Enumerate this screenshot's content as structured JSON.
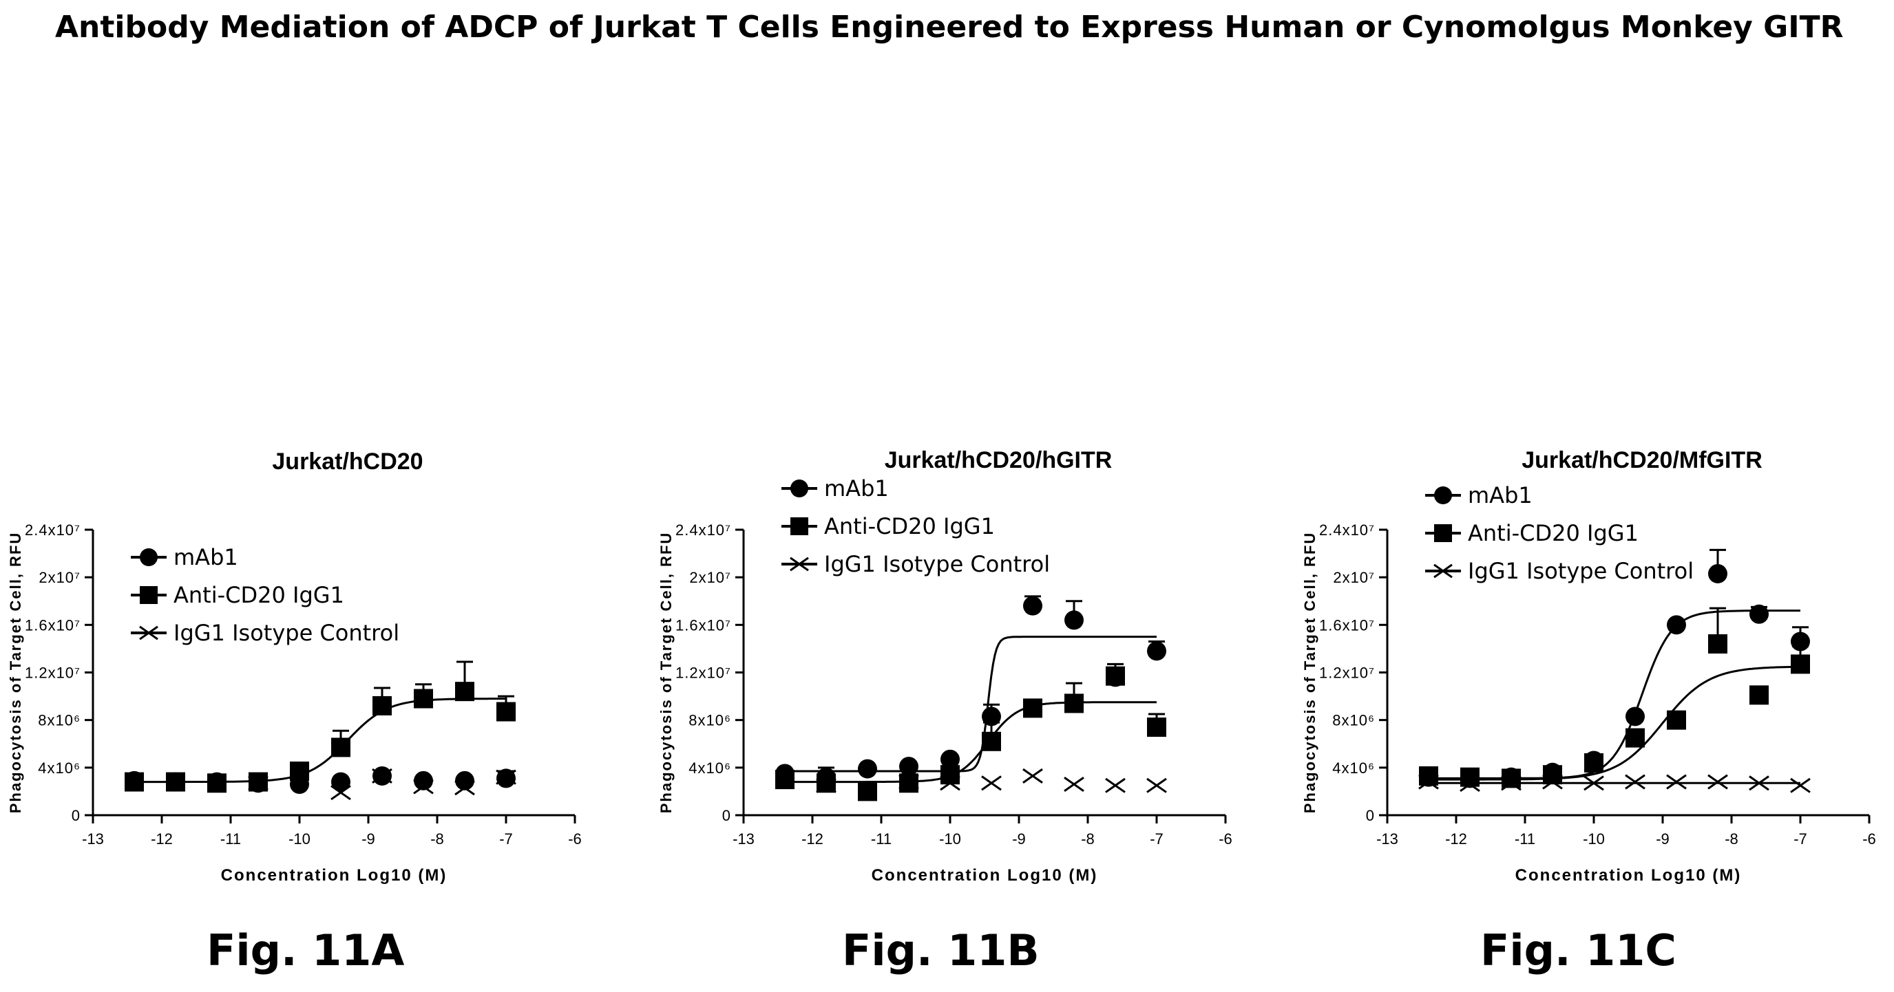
{
  "title": "Antibody Mediation of ADCP of Jurkat T Cells Engineered to Express Human or Cynomolgus Monkey GITR",
  "figure_labels": [
    "Fig. 11A",
    "Fig. 11B",
    "Fig. 11C"
  ],
  "chart_data": [
    {
      "type": "scatter",
      "title": "Jurkat/hCD20",
      "xlabel": "Concentration Log10 (M)",
      "ylabel": "Phagocytosis of Target Cell, RFU",
      "xlim": [
        -13,
        -6
      ],
      "ylim": [
        0,
        24000000
      ],
      "xticks": [
        -13,
        -12,
        -11,
        -10,
        -9,
        -8,
        -7,
        -6
      ],
      "yticks": [
        0,
        4000000,
        8000000,
        12000000,
        16000000,
        20000000,
        24000000
      ],
      "ytick_labels": [
        "0",
        "4x10⁶",
        "8x10⁶",
        "1.2x10⁷",
        "1.6x10⁷",
        "2x10⁷",
        "2.4x10⁷"
      ],
      "legend": "top-left",
      "series": [
        {
          "name": "mAb1",
          "marker": "circle",
          "x": [
            -12.4,
            -11.8,
            -11.2,
            -10.6,
            -10.0,
            -9.4,
            -8.8,
            -8.2,
            -7.6,
            -7.0
          ],
          "y": [
            2900000,
            2800000,
            2800000,
            2700000,
            2600000,
            2800000,
            3300000,
            2900000,
            2900000,
            3100000
          ],
          "err": [
            0,
            0,
            0,
            0,
            0,
            0,
            300000,
            0,
            0,
            600000
          ],
          "fit": {
            "show": false
          }
        },
        {
          "name": "Anti-CD20 IgG1",
          "marker": "square",
          "x": [
            -12.4,
            -11.8,
            -11.2,
            -10.6,
            -10.0,
            -9.4,
            -8.8,
            -8.2,
            -7.6,
            -7.0
          ],
          "y": [
            2800000,
            2800000,
            2700000,
            2800000,
            3700000,
            5700000,
            9200000,
            9800000,
            10400000,
            8700000
          ],
          "err": [
            0,
            0,
            0,
            0,
            500000,
            1400000,
            1500000,
            1200000,
            2500000,
            1300000
          ],
          "fit": {
            "show": true,
            "bottom": 2800000,
            "top": 9800000,
            "logec50": -9.3,
            "hill": 1.5
          }
        },
        {
          "name": "IgG1 Isotype Control",
          "marker": "x",
          "x": [
            -10.6,
            -9.4,
            -8.8,
            -8.2,
            -7.6,
            -7.0
          ],
          "y": [
            2700000,
            1900000,
            3300000,
            2400000,
            2300000,
            3200000
          ],
          "err": [
            0,
            0,
            0,
            0,
            0,
            0
          ],
          "fit": {
            "show": false
          }
        }
      ]
    },
    {
      "type": "scatter",
      "title": "Jurkat/hCD20/hGITR",
      "xlabel": "Concentration Log10 (M)",
      "ylabel": "Phagocytosis of Target Cell, RFU",
      "xlim": [
        -13,
        -6
      ],
      "ylim": [
        0,
        24000000
      ],
      "xticks": [
        -13,
        -12,
        -11,
        -10,
        -9,
        -8,
        -7,
        -6
      ],
      "yticks": [
        0,
        4000000,
        8000000,
        12000000,
        16000000,
        20000000,
        24000000
      ],
      "ytick_labels": [
        "0",
        "4x10⁶",
        "8x10⁶",
        "1.2x10⁷",
        "1.6x10⁷",
        "2x10⁷",
        "2.4x10⁷"
      ],
      "legend": "top-left",
      "series": [
        {
          "name": "mAb1",
          "marker": "circle",
          "x": [
            -12.4,
            -11.8,
            -11.2,
            -10.6,
            -10.0,
            -9.4,
            -8.8,
            -8.2,
            -7.6,
            -7.0
          ],
          "y": [
            3500000,
            3200000,
            3900000,
            4100000,
            4700000,
            8300000,
            17600000,
            16400000,
            11600000,
            13800000
          ],
          "err": [
            0,
            0,
            0,
            0,
            0,
            1000000,
            800000,
            1600000,
            0,
            800000
          ],
          "fit": {
            "show": true,
            "bottom": 3700000,
            "top": 15000000,
            "logec50": -9.45,
            "hill": 8
          }
        },
        {
          "name": "Anti-CD20 IgG1",
          "marker": "square",
          "x": [
            -12.4,
            -11.8,
            -11.2,
            -10.6,
            -10.0,
            -9.4,
            -8.8,
            -8.2,
            -7.6,
            -7.0
          ],
          "y": [
            3000000,
            2700000,
            2000000,
            2700000,
            3400000,
            6200000,
            9000000,
            9400000,
            11700000,
            7400000
          ],
          "err": [
            0,
            1300000,
            0,
            0,
            1400000,
            1600000,
            0,
            1700000,
            1000000,
            1100000
          ],
          "fit": {
            "show": true,
            "bottom": 2800000,
            "top": 9500000,
            "logec50": -9.45,
            "hill": 2
          }
        },
        {
          "name": "IgG1 Isotype Control",
          "marker": "x",
          "x": [
            -11.8,
            -10.6,
            -10.0,
            -9.4,
            -8.8,
            -8.2,
            -7.6,
            -7.0
          ],
          "y": [
            2500000,
            2800000,
            2700000,
            2700000,
            3300000,
            2600000,
            2500000,
            2500000
          ],
          "err": [
            0,
            0,
            0,
            0,
            0,
            0,
            0,
            0
          ],
          "fit": {
            "show": false
          }
        }
      ]
    },
    {
      "type": "scatter",
      "title": "Jurkat/hCD20/MfGITR",
      "xlabel": "Concentration Log10 (M)",
      "ylabel": "Phagocytosis of Target Cell, RFU",
      "xlim": [
        -13,
        -6
      ],
      "ylim": [
        0,
        24000000
      ],
      "xticks": [
        -13,
        -12,
        -11,
        -10,
        -9,
        -8,
        -7,
        -6
      ],
      "yticks": [
        0,
        4000000,
        8000000,
        12000000,
        16000000,
        20000000,
        24000000
      ],
      "ytick_labels": [
        "0",
        "4x10⁶",
        "8x10⁶",
        "1.2x10⁷",
        "1.6x10⁷",
        "2x10⁷",
        "2.4x10⁷"
      ],
      "legend": "top-left",
      "series": [
        {
          "name": "mAb1",
          "marker": "circle",
          "x": [
            -12.4,
            -11.8,
            -11.2,
            -10.6,
            -10.0,
            -9.4,
            -8.8,
            -8.2,
            -7.6,
            -7.0
          ],
          "y": [
            3200000,
            3100000,
            3200000,
            3600000,
            4600000,
            8300000,
            16000000,
            20300000,
            16900000,
            14600000
          ],
          "err": [
            0,
            0,
            0,
            0,
            0,
            0,
            0,
            2000000,
            600000,
            1200000
          ],
          "fit": {
            "show": true,
            "bottom": 3100000,
            "top": 17200000,
            "logec50": -9.3,
            "hill": 2
          }
        },
        {
          "name": "Anti-CD20 IgG1",
          "marker": "square",
          "x": [
            -12.4,
            -11.8,
            -11.2,
            -10.6,
            -10.0,
            -9.4,
            -8.8,
            -8.2,
            -7.6,
            -7.0
          ],
          "y": [
            3300000,
            3200000,
            3100000,
            3400000,
            4400000,
            6500000,
            8000000,
            14400000,
            10100000,
            12700000
          ],
          "err": [
            0,
            0,
            0,
            0,
            0,
            0,
            0,
            3000000,
            0,
            1500000
          ],
          "fit": {
            "show": true,
            "bottom": 3000000,
            "top": 12500000,
            "logec50": -9.0,
            "hill": 1.3
          }
        },
        {
          "name": "IgG1 Isotype Control",
          "marker": "x",
          "x": [
            -12.4,
            -11.8,
            -11.2,
            -10.6,
            -10.0,
            -9.4,
            -8.8,
            -8.2,
            -7.6,
            -7.0
          ],
          "y": [
            2800000,
            2600000,
            2700000,
            2800000,
            2700000,
            2800000,
            2800000,
            2800000,
            2700000,
            2500000
          ],
          "err": [
            0,
            0,
            0,
            0,
            0,
            0,
            0,
            0,
            0,
            0
          ],
          "fit": {
            "show": true,
            "flat": true,
            "bottom": 2700000,
            "top": 2700000,
            "logec50": -9.5,
            "hill": 1
          }
        }
      ]
    }
  ]
}
